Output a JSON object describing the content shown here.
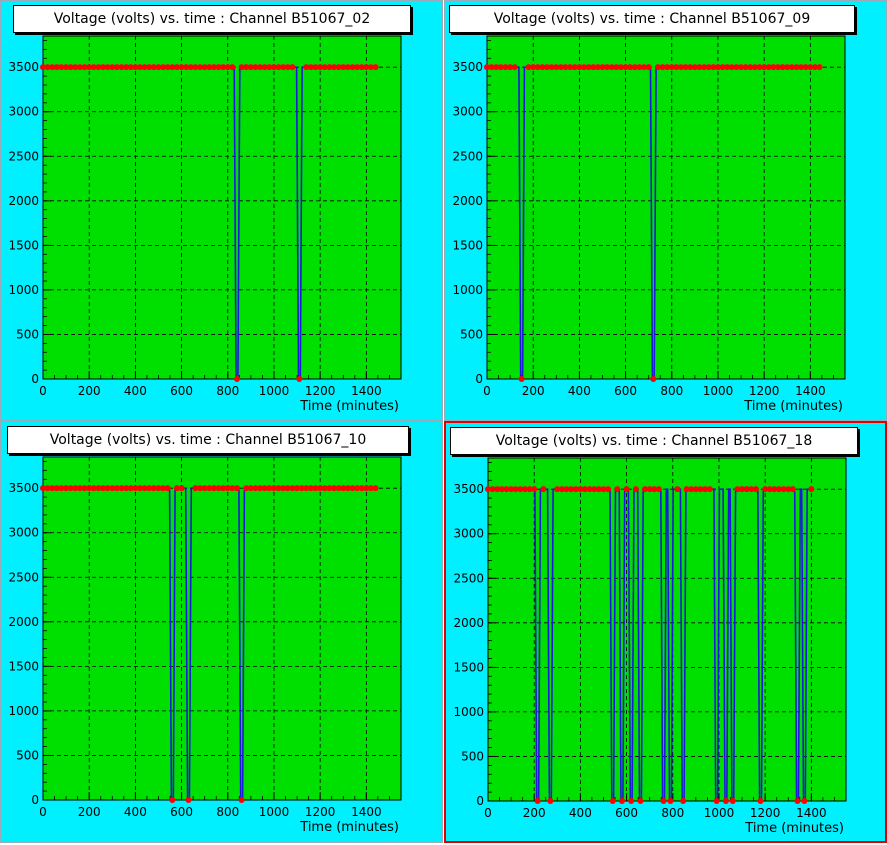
{
  "colors": {
    "pad": "#00f0ff",
    "frame": "#00e000",
    "line": "#1a1ad8",
    "marker": "#ff0000",
    "grid": "#000000"
  },
  "chart_data": [
    {
      "type": "line",
      "title": "Voltage (volts) vs. time  : Channel B51067_02",
      "xlabel": "Time (minutes)",
      "ylabel": "",
      "xlim": [
        0,
        1550
      ],
      "ylim": [
        0,
        3850
      ],
      "xticks": [
        0,
        200,
        400,
        600,
        800,
        1000,
        1200,
        1400
      ],
      "yticks": [
        0,
        500,
        1000,
        1500,
        2000,
        2500,
        3000,
        3500
      ],
      "grid": true,
      "series": [
        {
          "x": [
            0,
            835,
            855,
            1100,
            1120,
            1450
          ],
          "y": [
            3500,
            3500,
            0,
            3500,
            0,
            3500
          ]
        }
      ],
      "drops": [
        840,
        1110
      ]
    },
    {
      "type": "line",
      "title": "Voltage (volts) vs. time  : Channel B51067_09",
      "xlabel": "Time (minutes)",
      "ylabel": "",
      "xlim": [
        0,
        1550
      ],
      "ylim": [
        0,
        3850
      ],
      "xticks": [
        0,
        200,
        400,
        600,
        800,
        1000,
        1200,
        1400
      ],
      "yticks": [
        0,
        500,
        1000,
        1500,
        2000,
        2500,
        3000,
        3500
      ],
      "grid": true,
      "series": [
        {
          "x": [
            0,
            1450
          ],
          "y": [
            3500,
            3500
          ]
        }
      ],
      "drops": [
        150,
        720
      ]
    },
    {
      "type": "line",
      "title": "Voltage (volts) vs. time  : Channel B51067_10",
      "xlabel": "Time (minutes)",
      "ylabel": "",
      "xlim": [
        0,
        1550
      ],
      "ylim": [
        0,
        3850
      ],
      "xticks": [
        0,
        200,
        400,
        600,
        800,
        1000,
        1200,
        1400
      ],
      "yticks": [
        0,
        500,
        1000,
        1500,
        2000,
        2500,
        3000,
        3500
      ],
      "grid": true,
      "series": [
        {
          "x": [
            0,
            1450
          ],
          "y": [
            3500,
            3500
          ]
        }
      ],
      "drops": [
        560,
        630,
        860
      ]
    },
    {
      "type": "line",
      "title": "Voltage (volts) vs. time  : Channel B51067_18",
      "xlabel": "Time (minutes)",
      "ylabel": "",
      "xlim": [
        0,
        1550
      ],
      "ylim": [
        0,
        3850
      ],
      "xticks": [
        0,
        200,
        400,
        600,
        800,
        1000,
        1200,
        1400
      ],
      "yticks": [
        0,
        500,
        1000,
        1500,
        2000,
        2500,
        3000,
        3500
      ],
      "grid": true,
      "series": [
        {
          "x": [
            0,
            1400
          ],
          "y": [
            3500,
            3500
          ]
        }
      ],
      "drops": [
        215,
        270,
        540,
        580,
        620,
        660,
        760,
        790,
        845,
        990,
        1030,
        1060,
        1180,
        1340,
        1370
      ]
    }
  ]
}
